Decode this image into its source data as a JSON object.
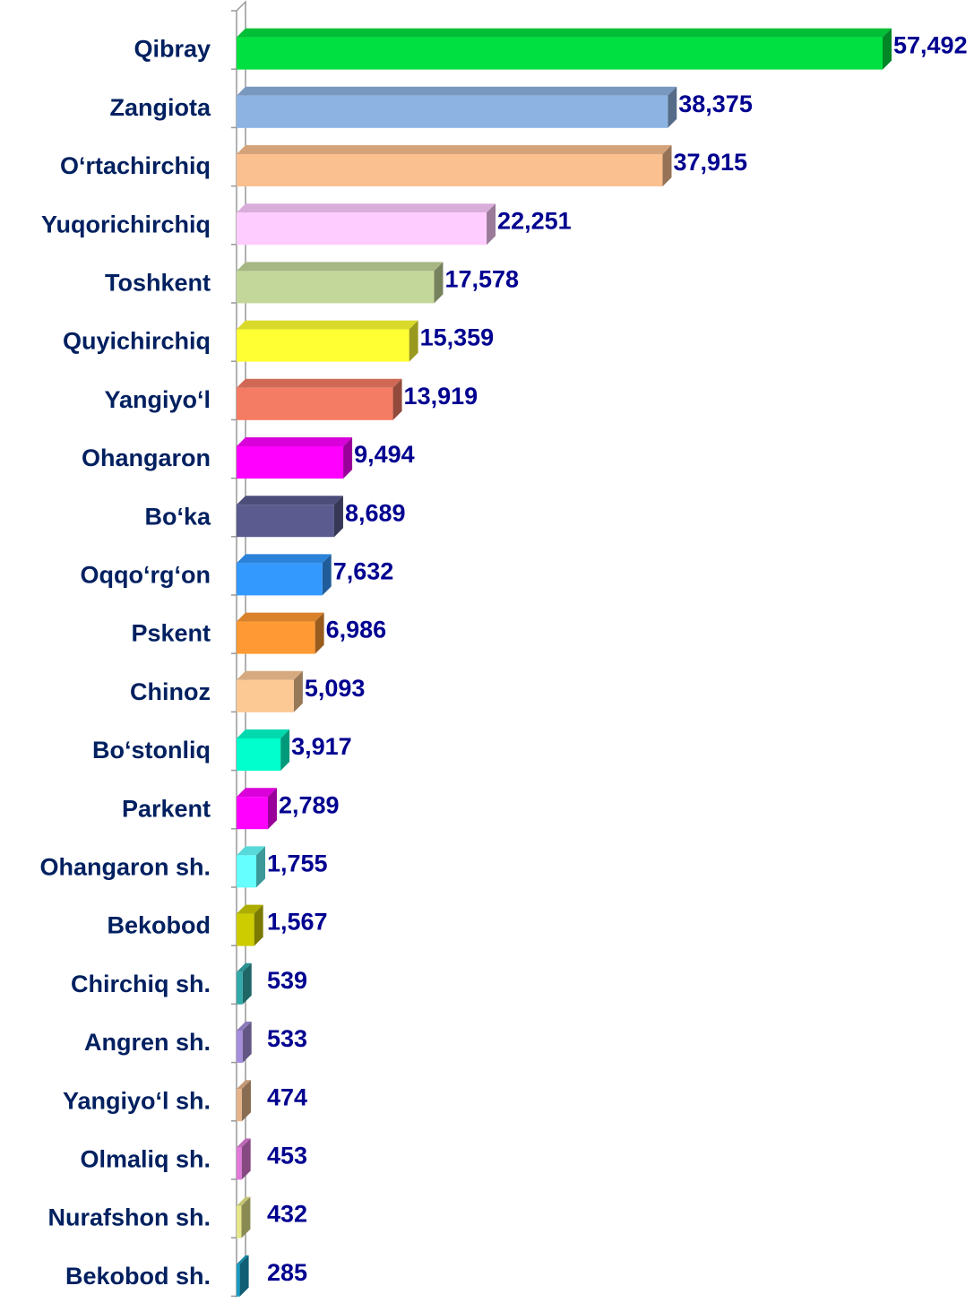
{
  "chart_data": {
    "type": "bar3d",
    "categories": [
      "Qibray",
      "Zangiota",
      "O‘rtachirchiq",
      "Yuqorichirchiq",
      "Toshkent",
      "Quyichirchiq",
      "Yangiyo‘l",
      "Ohangaron",
      "Bo‘ka",
      "Oqqo‘rg‘on",
      "Pskent",
      "Chinoz",
      "Bo‘stonliq",
      "Parkent",
      "Ohangaron sh.",
      "Bekobod",
      "Chirchiq sh.",
      "Angren sh.",
      "Yangiyo‘l sh.",
      "Olmaliq sh.",
      "Nurafshon sh.",
      "Bekobod sh."
    ],
    "values": [
      57492,
      38375,
      37915,
      22251,
      17578,
      15359,
      13919,
      9494,
      8689,
      7632,
      6986,
      5093,
      3917,
      2789,
      1755,
      1567,
      539,
      533,
      474,
      453,
      432,
      285
    ],
    "value_labels": [
      "57,492",
      "38,375",
      "37,915",
      "22,251",
      "17,578",
      "15,359",
      "13,919",
      "9,494",
      "8,689",
      "7,632",
      "6,986",
      "5,093",
      "3,917",
      "2,789",
      "1,755",
      "1,567",
      "539",
      "533",
      "474",
      "453",
      "432",
      "285"
    ],
    "colors": [
      "#00e040",
      "#8db3e2",
      "#fac090",
      "#ffccff",
      "#c4d79b",
      "#ffff33",
      "#f47c64",
      "#ff00ff",
      "#5b5b8f",
      "#3399ff",
      "#ff9933",
      "#fcc894",
      "#00ffcc",
      "#ff00ff",
      "#66ffff",
      "#cccc00",
      "#33aaaa",
      "#a58fdc",
      "#e6b48a",
      "#e07ad8",
      "#e6e68a",
      "#1a9cc0"
    ],
    "orientation": "horizontal"
  }
}
